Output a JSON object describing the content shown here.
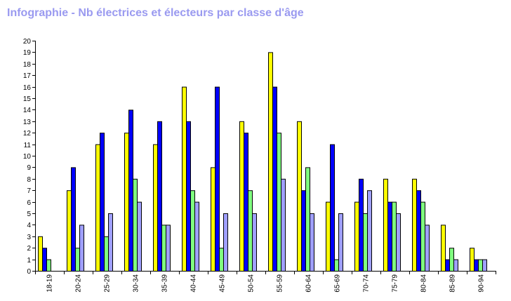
{
  "chart_data": {
    "type": "bar",
    "title": "Infographie - Nb électrices et électeurs par classe d'âge",
    "xlabel": "",
    "ylabel": "",
    "ylim": [
      0,
      20
    ],
    "grid": false,
    "categories": [
      "18-19",
      "20-24",
      "25-29",
      "30-34",
      "35-39",
      "40-44",
      "45-49",
      "50-54",
      "55-59",
      "60-64",
      "65-69",
      "70-74",
      "75-79",
      "80-84",
      "85-89",
      "90-94"
    ],
    "yticks": [
      "0",
      "1",
      "2",
      "3",
      "4",
      "5",
      "6",
      "7",
      "8",
      "9",
      "10",
      "11",
      "12",
      "13",
      "14",
      "15",
      "16",
      "17",
      "18",
      "19",
      "20"
    ],
    "series": [
      {
        "color": "#ffff00",
        "values": [
          3,
          7,
          11,
          12,
          11,
          16,
          9,
          13,
          19,
          13,
          6,
          6,
          8,
          8,
          4,
          2
        ]
      },
      {
        "color": "#0000ff",
        "values": [
          2,
          9,
          12,
          14,
          13,
          13,
          16,
          12,
          16,
          7,
          11,
          8,
          6,
          7,
          1,
          1
        ]
      },
      {
        "color": "#80ff80",
        "values": [
          1,
          2,
          3,
          8,
          4,
          7,
          2,
          7,
          12,
          9,
          1,
          5,
          6,
          6,
          2,
          1
        ]
      },
      {
        "color": "#a0a0ff",
        "values": [
          0,
          4,
          5,
          6,
          4,
          6,
          5,
          5,
          8,
          5,
          5,
          7,
          5,
          4,
          1,
          1
        ]
      }
    ]
  }
}
